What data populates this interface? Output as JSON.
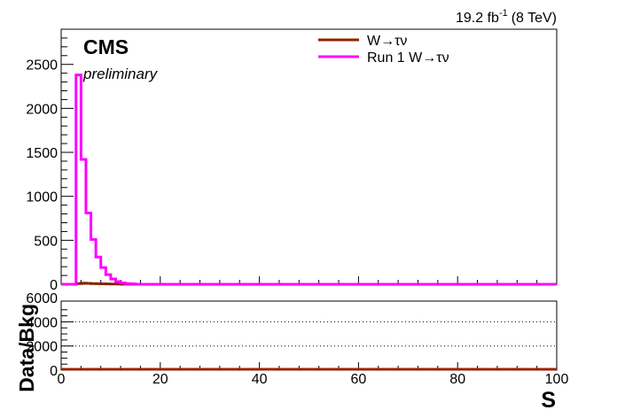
{
  "header": {
    "lumi_value": "19.2 fb",
    "lumi_exp": "-1",
    "lumi_energy": "(8 TeV)"
  },
  "labels": {
    "experiment": "CMS",
    "status": "preliminary"
  },
  "colors": {
    "w_tau_nu": "#8b2500",
    "run1_w_tau_nu": "#ff00ff",
    "ratio_line": "#a02000",
    "axis": "#000000",
    "grid": "#000000"
  },
  "chart_data": [
    {
      "type": "line",
      "panel": "main",
      "xlim": [
        0,
        100
      ],
      "ylim": [
        0,
        2900
      ],
      "xlabel": "",
      "ylabel": "",
      "yticks": [
        0,
        500,
        1000,
        1500,
        2000,
        2500
      ],
      "legend": "top-center",
      "bin_width": 1,
      "series": [
        {
          "name": "W→τν",
          "style": "step",
          "x": [
            3,
            4,
            5,
            6,
            7,
            8,
            9,
            10,
            11,
            12,
            13,
            14,
            15
          ],
          "values": [
            8,
            12,
            10,
            8,
            6,
            5,
            4,
            3,
            2,
            1,
            1,
            0,
            0
          ]
        },
        {
          "name": "Run 1 W→τν",
          "style": "step",
          "x": [
            3,
            4,
            5,
            6,
            7,
            8,
            9,
            10,
            11,
            12,
            13,
            14,
            15
          ],
          "values": [
            2380,
            1420,
            810,
            510,
            310,
            190,
            110,
            60,
            30,
            15,
            8,
            4,
            0
          ]
        }
      ]
    },
    {
      "type": "line",
      "panel": "ratio",
      "xlim": [
        0,
        100
      ],
      "ylim": [
        0,
        4000
      ],
      "xlabel": "S",
      "ylabel": "Data/Bkg",
      "xticks": [
        0,
        20,
        40,
        60,
        80,
        100
      ],
      "yticks": [
        0,
        2000,
        4000,
        6000
      ],
      "yticklabels": [
        "0",
        "2000",
        "4000",
        "6000"
      ],
      "grid": "horizontal-dotted",
      "series": [
        {
          "x": [
            0,
            100
          ],
          "values": [
            0,
            0
          ]
        }
      ]
    }
  ]
}
